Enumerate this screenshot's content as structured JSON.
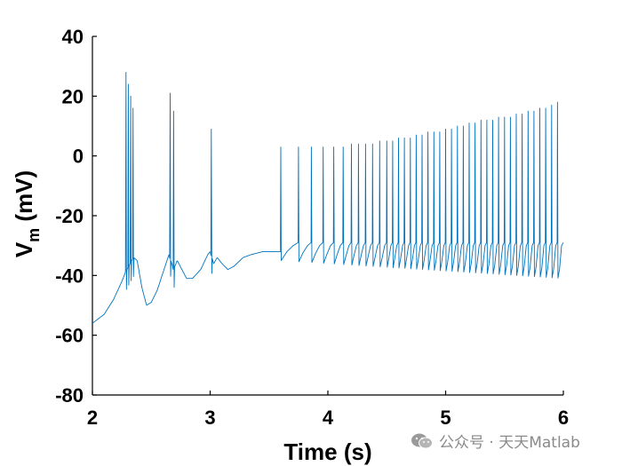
{
  "chart_data": {
    "type": "line",
    "title": "",
    "xlabel": "Time (s)",
    "ylabel_main": "V",
    "ylabel_sub": "m",
    "ylabel_rest": " (mV)",
    "xlim": [
      2,
      6
    ],
    "ylim": [
      -80,
      40
    ],
    "xticks": [
      2,
      3,
      4,
      5,
      6
    ],
    "yticks": [
      -80,
      -60,
      -40,
      -20,
      0,
      20,
      40
    ],
    "grid": false,
    "line_color": "#0072BD",
    "baseline": [
      [
        2.0,
        -56
      ],
      [
        2.1,
        -53
      ],
      [
        2.18,
        -48
      ],
      [
        2.25,
        -42
      ],
      [
        2.28,
        -39
      ],
      [
        2.35,
        -34
      ],
      [
        2.38,
        -35
      ],
      [
        2.42,
        -44
      ],
      [
        2.46,
        -50
      ],
      [
        2.5,
        -49
      ],
      [
        2.55,
        -45
      ],
      [
        2.6,
        -39
      ],
      [
        2.65,
        -33
      ],
      [
        2.69,
        -38
      ],
      [
        2.72,
        -35
      ],
      [
        2.76,
        -38
      ],
      [
        2.8,
        -41
      ],
      [
        2.85,
        -41
      ],
      [
        2.92,
        -38
      ],
      [
        2.98,
        -33
      ],
      [
        3.0,
        -32
      ],
      [
        3.03,
        -36
      ],
      [
        3.06,
        -34
      ],
      [
        3.1,
        -36
      ],
      [
        3.15,
        -38
      ],
      [
        3.2,
        -37
      ],
      [
        3.28,
        -34
      ],
      [
        3.35,
        -33
      ],
      [
        3.45,
        -32
      ],
      [
        3.55,
        -32
      ],
      [
        3.6,
        -32
      ]
    ],
    "spikes": [
      {
        "t": 2.285,
        "peak": 28
      },
      {
        "t": 2.305,
        "peak": 24
      },
      {
        "t": 2.325,
        "peak": 20
      },
      {
        "t": 2.345,
        "peak": 16
      },
      {
        "t": 2.66,
        "peak": 21
      },
      {
        "t": 2.69,
        "peak": 15
      },
      {
        "t": 3.01,
        "peak": 9
      },
      {
        "t": 3.6,
        "peak": 3
      },
      {
        "t": 3.75,
        "peak": 3
      },
      {
        "t": 3.86,
        "peak": 3
      },
      {
        "t": 3.96,
        "peak": 3
      },
      {
        "t": 4.05,
        "peak": 3
      },
      {
        "t": 4.13,
        "peak": 3
      },
      {
        "t": 4.2,
        "peak": 4
      },
      {
        "t": 4.26,
        "peak": 4
      },
      {
        "t": 4.32,
        "peak": 4
      },
      {
        "t": 4.38,
        "peak": 4
      },
      {
        "t": 4.44,
        "peak": 5
      },
      {
        "t": 4.5,
        "peak": 5
      },
      {
        "t": 4.55,
        "peak": 5
      },
      {
        "t": 4.6,
        "peak": 6
      },
      {
        "t": 4.65,
        "peak": 6
      },
      {
        "t": 4.7,
        "peak": 6
      },
      {
        "t": 4.75,
        "peak": 7
      },
      {
        "t": 4.8,
        "peak": 7
      },
      {
        "t": 4.85,
        "peak": 8
      },
      {
        "t": 4.9,
        "peak": 8
      },
      {
        "t": 4.95,
        "peak": 8
      },
      {
        "t": 5.0,
        "peak": 9
      },
      {
        "t": 5.05,
        "peak": 9
      },
      {
        "t": 5.1,
        "peak": 10
      },
      {
        "t": 5.15,
        "peak": 10
      },
      {
        "t": 5.2,
        "peak": 11
      },
      {
        "t": 5.25,
        "peak": 11
      },
      {
        "t": 5.3,
        "peak": 12
      },
      {
        "t": 5.35,
        "peak": 12
      },
      {
        "t": 5.4,
        "peak": 12
      },
      {
        "t": 5.45,
        "peak": 13
      },
      {
        "t": 5.5,
        "peak": 13
      },
      {
        "t": 5.55,
        "peak": 13
      },
      {
        "t": 5.6,
        "peak": 14
      },
      {
        "t": 5.65,
        "peak": 14
      },
      {
        "t": 5.7,
        "peak": 15
      },
      {
        "t": 5.75,
        "peak": 15
      },
      {
        "t": 5.8,
        "peak": 16
      },
      {
        "t": 5.85,
        "peak": 16
      },
      {
        "t": 5.9,
        "peak": 17
      },
      {
        "t": 5.95,
        "peak": 18
      }
    ],
    "spiking_trough_start": -35,
    "spiking_trough_end": -41,
    "spiking_rebound": -29,
    "end_point": [
      6.0,
      -29
    ]
  },
  "watermark": {
    "icon": "wechat-icon",
    "text": "公众号 · 天天Matlab"
  }
}
